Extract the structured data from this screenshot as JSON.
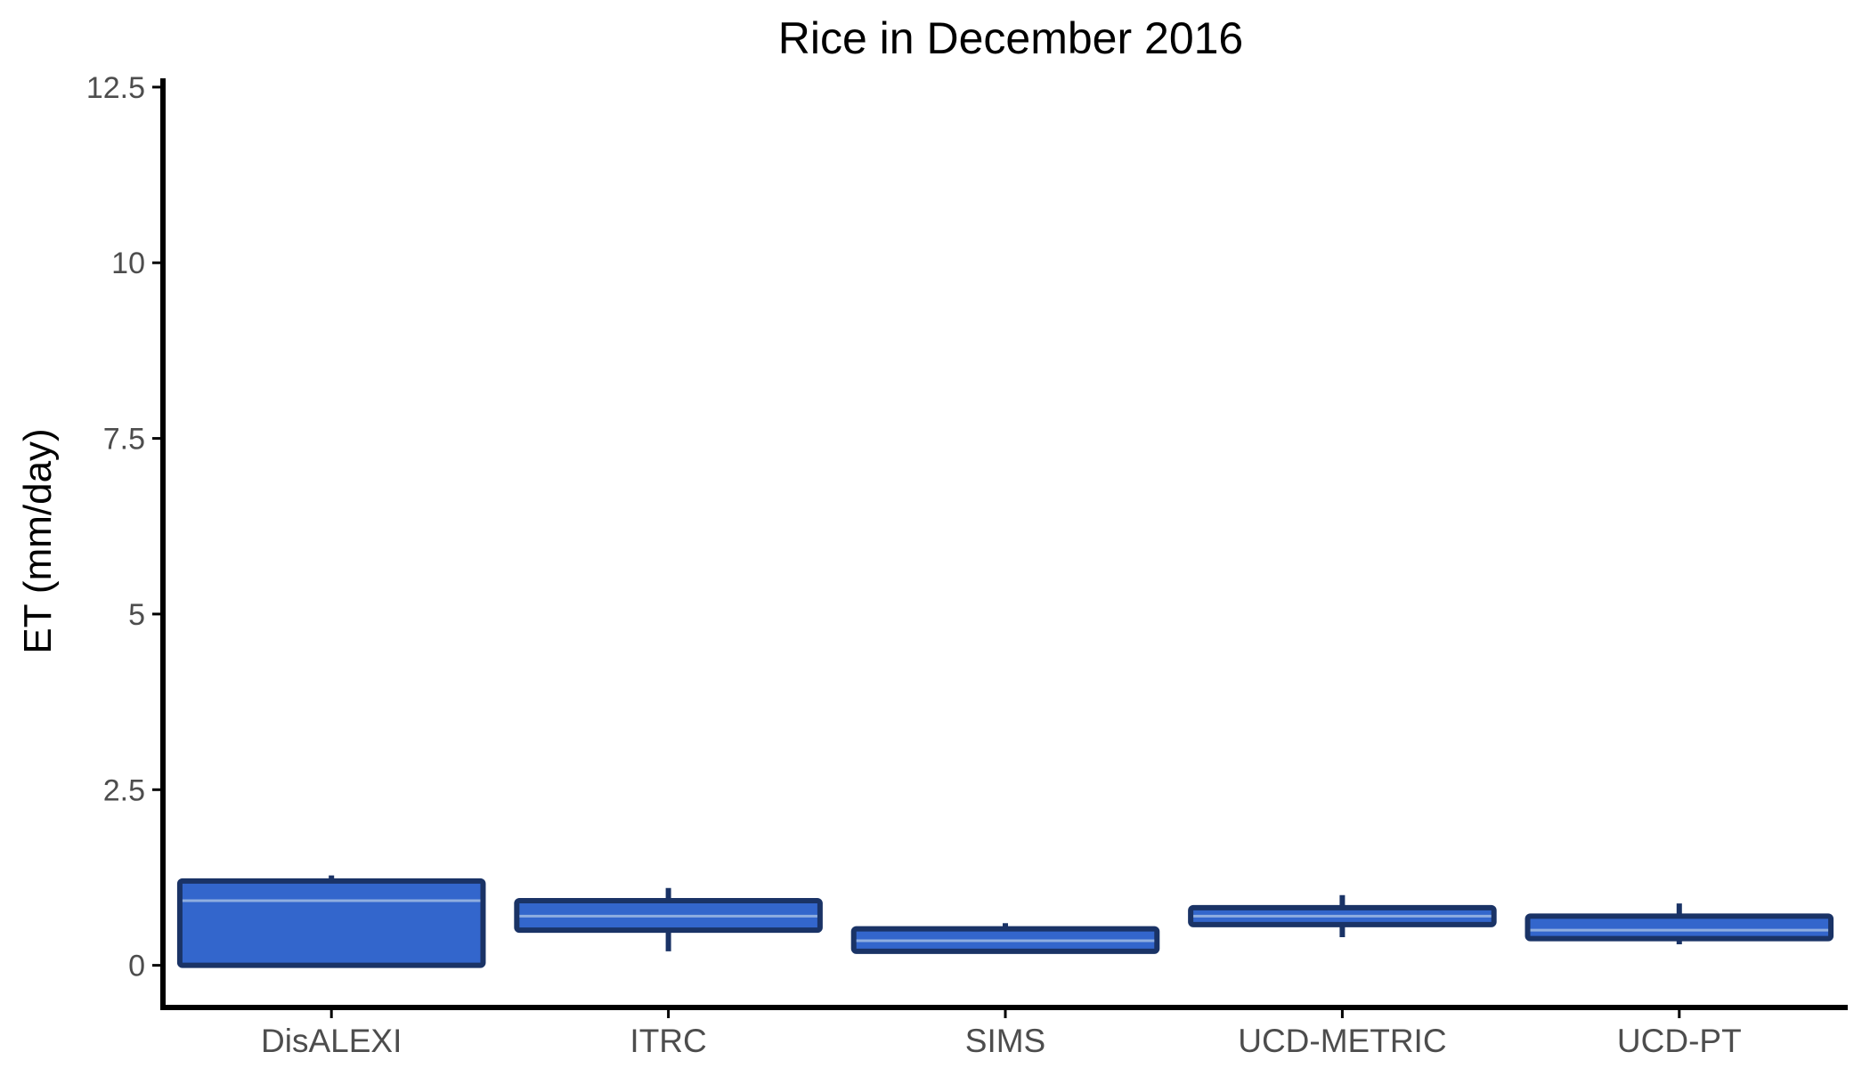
{
  "chart_data": {
    "type": "boxplot",
    "title": "Rice in December 2016",
    "xlabel": "",
    "ylabel": "ET (mm/day)",
    "ylim": [
      -0.6,
      12.6
    ],
    "yticks": [
      {
        "value": 0,
        "label": "0"
      },
      {
        "value": 2.5,
        "label": "2.5"
      },
      {
        "value": 5,
        "label": "5"
      },
      {
        "value": 7.5,
        "label": "7.5"
      },
      {
        "value": 10,
        "label": "10"
      },
      {
        "value": 12.5,
        "label": "12.5"
      }
    ],
    "categories": [
      "DisALEXI",
      "ITRC",
      "SIMS",
      "UCD-METRIC",
      "UCD-PT"
    ],
    "boxes": [
      {
        "category": "DisALEXI",
        "min": 0.0,
        "q1": 0.0,
        "median": 0.92,
        "q3": 1.2,
        "max": 1.28
      },
      {
        "category": "ITRC",
        "min": 0.2,
        "q1": 0.5,
        "median": 0.7,
        "q3": 0.92,
        "max": 1.1
      },
      {
        "category": "SIMS",
        "min": 0.18,
        "q1": 0.2,
        "median": 0.35,
        "q3": 0.52,
        "max": 0.6
      },
      {
        "category": "UCD-METRIC",
        "min": 0.4,
        "q1": 0.58,
        "median": 0.7,
        "q3": 0.82,
        "max": 1.0
      },
      {
        "category": "UCD-PT",
        "min": 0.3,
        "q1": 0.38,
        "median": 0.5,
        "q3": 0.7,
        "max": 0.88
      }
    ],
    "box_fill": "#3366cc",
    "box_stroke": "#1a3366",
    "median_color": "#8faee0",
    "axis_color": "#000000",
    "grid": false,
    "legend": "none"
  }
}
